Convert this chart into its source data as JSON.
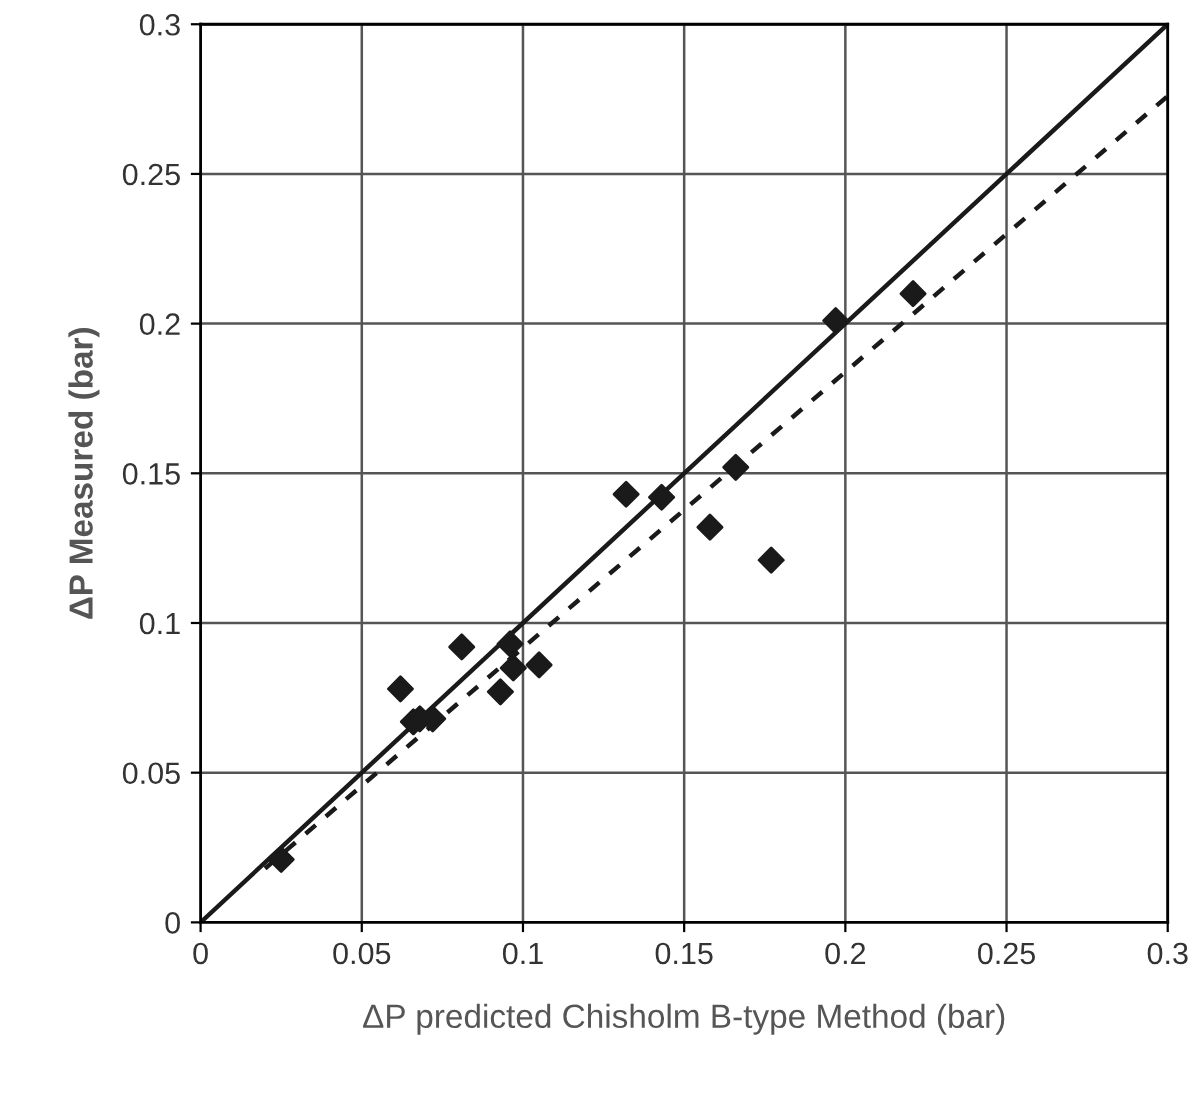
{
  "chart_data": {
    "type": "scatter",
    "xlabel": "ΔP predicted Chisholm B-type Method (bar)",
    "ylabel": "ΔP Measured (bar)",
    "xlim": [
      0,
      0.3
    ],
    "ylim": [
      0,
      0.3
    ],
    "xticks": [
      0,
      0.05,
      0.1,
      0.15,
      0.2,
      0.25,
      0.3
    ],
    "yticks": [
      0,
      0.05,
      0.1,
      0.15,
      0.2,
      0.25,
      0.3
    ],
    "grid": true,
    "marker": "diamond",
    "series": [
      {
        "color": "#1a1a1a",
        "x": [
          0.025,
          0.062,
          0.066,
          0.068,
          0.072,
          0.081,
          0.093,
          0.096,
          0.097,
          0.105,
          0.132,
          0.143,
          0.158,
          0.166,
          0.177,
          0.197,
          0.221
        ],
        "values": [
          0.021,
          0.078,
          0.067,
          0.068,
          0.068,
          0.092,
          0.077,
          0.093,
          0.085,
          0.086,
          0.143,
          0.142,
          0.132,
          0.152,
          0.121,
          0.201,
          0.21
        ]
      },
      {
        "type": "line",
        "color": "#1a1a1a",
        "line_style": "solid",
        "marker": "none",
        "x": [
          0,
          0.3
        ],
        "values": [
          0,
          0.3
        ]
      },
      {
        "type": "line",
        "color": "#1a1a1a",
        "line_style": "dashed",
        "marker": "none",
        "x": [
          0.02,
          0.3
        ],
        "values": [
          0.018,
          0.276
        ]
      }
    ]
  }
}
